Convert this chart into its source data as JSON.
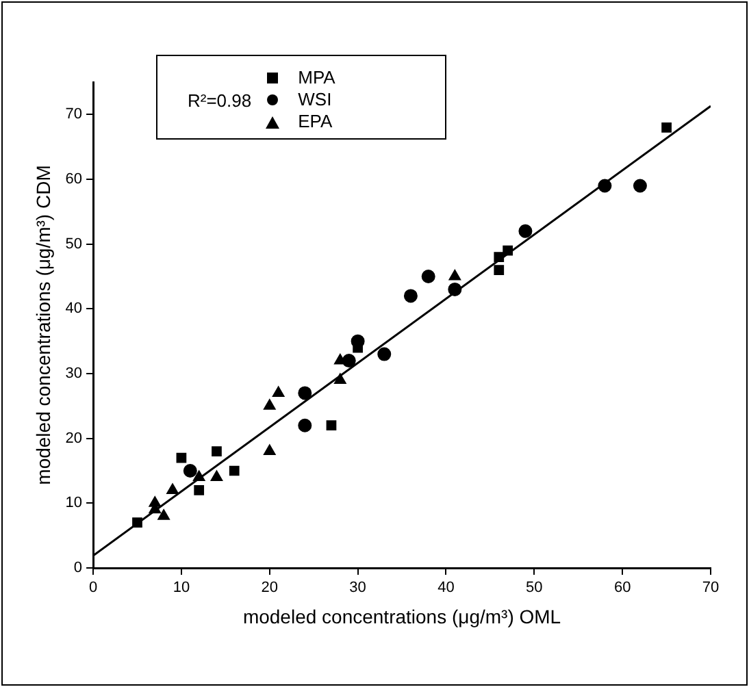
{
  "chart_data": {
    "type": "scatter",
    "xlabel": "modeled concentrations (μg/m³) OML",
    "ylabel": "modeled concentrations (μg/m³) CDM",
    "xlim": [
      0,
      70
    ],
    "ylim": [
      0,
      75
    ],
    "xticks": [
      0,
      10,
      20,
      30,
      40,
      50,
      60,
      70
    ],
    "yticks": [
      0,
      10,
      20,
      30,
      40,
      50,
      60,
      70
    ],
    "grid": false,
    "legend": "top left",
    "annotations": [
      "R²=0.98"
    ],
    "series": [
      {
        "name": "MPA",
        "color": "#000000",
        "marker": "square",
        "x": [
          5,
          10,
          12,
          14,
          16,
          27,
          30,
          46,
          46,
          47,
          65
        ],
        "values": [
          7,
          17,
          12,
          18,
          15,
          22,
          34,
          46,
          48,
          49,
          68
        ]
      },
      {
        "name": "WSI",
        "color": "#000000",
        "marker": "circle",
        "x": [
          11,
          24,
          24,
          29,
          30,
          33,
          36,
          38,
          41,
          49,
          58,
          62
        ],
        "values": [
          15,
          22,
          27,
          32,
          35,
          33,
          42,
          45,
          43,
          52,
          59,
          59
        ]
      },
      {
        "name": "EPA",
        "color": "#000000",
        "marker": "triangle",
        "x": [
          7,
          7,
          8,
          9,
          12,
          14,
          20,
          20,
          21,
          28,
          28,
          41
        ],
        "values": [
          10,
          9,
          8,
          12,
          14,
          14,
          18,
          25,
          27,
          32,
          29,
          45
        ]
      },
      {
        "type": "line",
        "color": "#000000",
        "marker": "none",
        "line_style": "solid",
        "x": [
          0,
          70
        ],
        "values": [
          1.9,
          71.3
        ]
      }
    ]
  }
}
